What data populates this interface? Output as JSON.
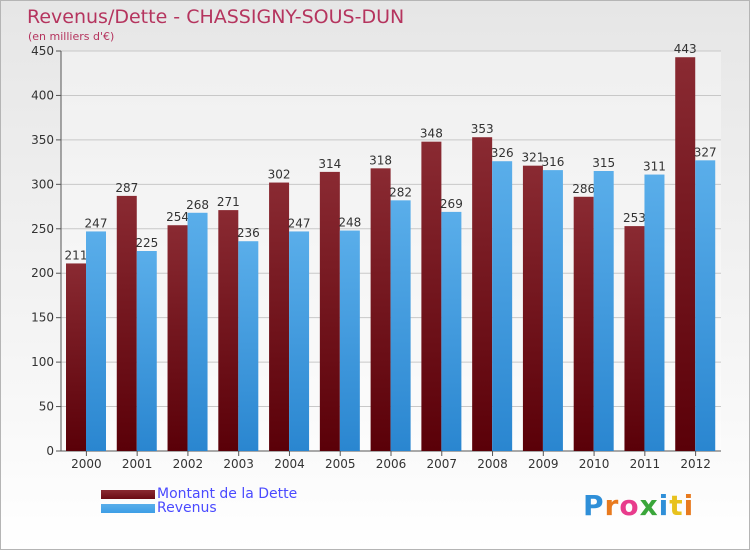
{
  "title": "Revenus/Dette - CHASSIGNY-SOUS-DUN",
  "subtitle": "(en milliers d'€)",
  "colors": {
    "dette": "#6b0b14",
    "revenus": "#3d9ee6",
    "title": "#b5345e",
    "legend_text": "#4a4aff"
  },
  "legend": {
    "position": "bottom-left",
    "items": [
      {
        "label": "Montant de la Dette"
      },
      {
        "label": "Revenus"
      }
    ]
  },
  "logo": {
    "letters": [
      "P",
      "r",
      "o",
      "x",
      "i",
      "t",
      "i"
    ]
  },
  "chart_data": {
    "type": "bar",
    "categories": [
      "2000",
      "2001",
      "2002",
      "2003",
      "2004",
      "2005",
      "2006",
      "2007",
      "2008",
      "2009",
      "2010",
      "2011",
      "2012"
    ],
    "series": [
      {
        "name": "Montant de la Dette",
        "values": [
          211,
          287,
          254,
          271,
          302,
          314,
          318,
          348,
          353,
          321,
          286,
          253,
          443
        ]
      },
      {
        "name": "Revenus",
        "values": [
          247,
          225,
          268,
          236,
          247,
          248,
          282,
          269,
          326,
          316,
          315,
          311,
          327
        ]
      }
    ],
    "ylim": [
      0,
      450
    ],
    "yticks": [
      0,
      50,
      100,
      150,
      200,
      250,
      300,
      350,
      400,
      450
    ],
    "grid": true
  }
}
